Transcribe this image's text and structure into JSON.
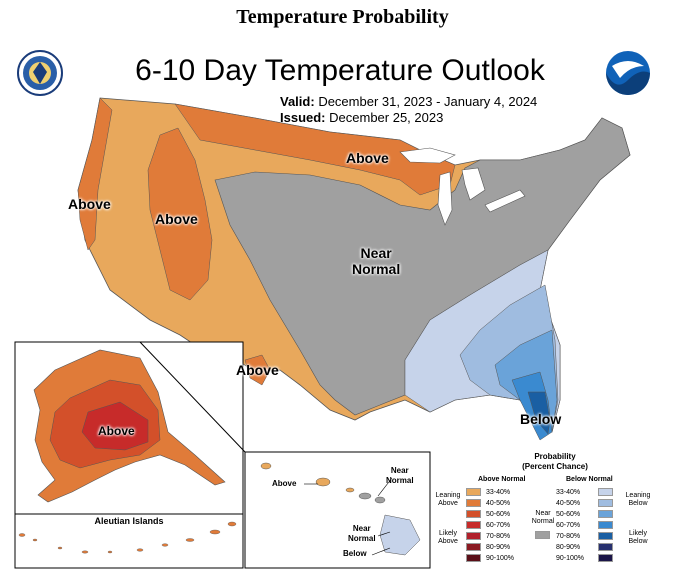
{
  "header": {
    "title": "Temperature Probability"
  },
  "map": {
    "title": "6-10 Day Temperature Outlook",
    "valid_label": "Valid:",
    "valid_dates": "December 31, 2023 - January 4, 2024",
    "issued_label": "Issued:",
    "issued_date": "December 25, 2023",
    "region_labels": {
      "west_coast": "Above",
      "rockies": "Above",
      "great_lakes": "Above",
      "center_line1": "Near",
      "center_line2": "Normal",
      "southwest": "Above",
      "florida": "Below"
    },
    "colors": {
      "above_33_40": "#e8a85c",
      "above_40_50": "#e07b39",
      "above_50_60": "#d3502a",
      "above_60_70": "#c72b2a",
      "above_70_80": "#b0202b",
      "above_80_90": "#8b1a22",
      "above_90_100": "#5a0f18",
      "near_normal": "#a0a0a0",
      "below_33_40": "#c6d3ea",
      "below_40_50": "#9fbce0",
      "below_50_60": "#6aa3d9",
      "below_60_70": "#3a8ad0",
      "below_70_80": "#1a5fa3",
      "below_80_90": "#27306e",
      "below_90_100": "#1b1548"
    },
    "icons": [
      "commerce-seal-icon",
      "noaa-logo-icon"
    ]
  },
  "alaska": {
    "region_label": "Above",
    "aleutian_title": "Aleutian Islands"
  },
  "hawaii": {
    "above_label": "Above",
    "near_normal_top": [
      "Near",
      "Normal"
    ],
    "near_normal_mid": [
      "Near",
      "Normal"
    ],
    "below_label": "Below"
  },
  "legend": {
    "title_line1": "Probability",
    "title_line2": "(Percent Chance)",
    "above_head": "Above Normal",
    "below_head": "Below Normal",
    "leaning_above": [
      "Leaning",
      "Above"
    ],
    "likely_above": [
      "Likely",
      "Above"
    ],
    "leaning_below": [
      "Leaning",
      "Below"
    ],
    "likely_below": [
      "Likely",
      "Below"
    ],
    "near_normal": [
      "Near",
      "Normal"
    ],
    "ranges": [
      "33-40%",
      "40-50%",
      "50-60%",
      "60-70%",
      "70-80%",
      "80-90%",
      "90-100%"
    ]
  }
}
